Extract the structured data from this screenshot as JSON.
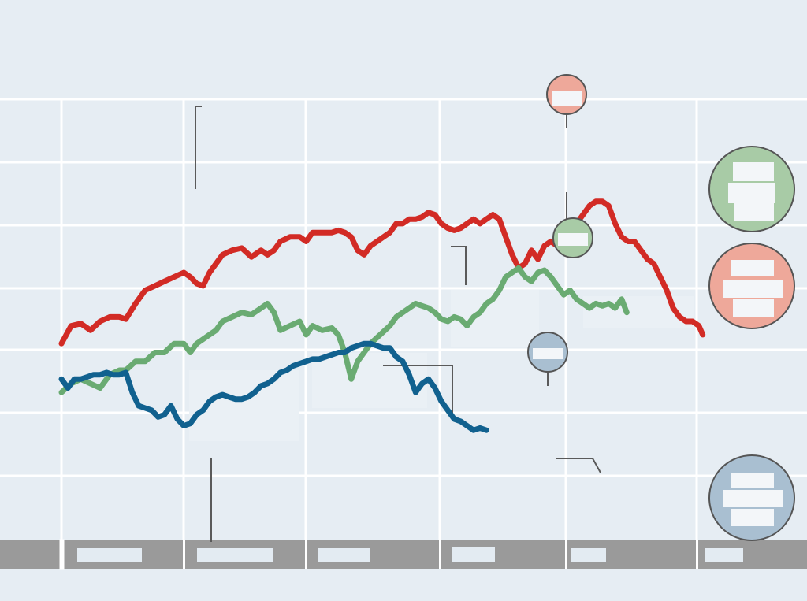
{
  "colors": {
    "background": "#e6edf3",
    "series_red": "#d22b25",
    "series_green": "#6aab72",
    "series_blue": "#11618f",
    "badge_red": "#eea89a",
    "badge_green": "#a8cba6",
    "badge_blue": "#a9bfd1",
    "year_band": "#9a9a9a"
  },
  "chart_data": {
    "type": "line",
    "title": "",
    "xlabel": "",
    "ylabel": "",
    "grid": true,
    "legend": "right",
    "x_range": [
      0,
      100
    ],
    "y_range": [
      0,
      100
    ],
    "series": [
      {
        "id": "red",
        "color": "#d22b25",
        "values": [
          [
            0,
            45
          ],
          [
            1.5,
            49
          ],
          [
            3,
            49.5
          ],
          [
            4.5,
            48
          ],
          [
            6,
            50
          ],
          [
            7.5,
            51
          ],
          [
            9,
            51
          ],
          [
            10,
            50.5
          ],
          [
            11.5,
            54
          ],
          [
            13,
            57
          ],
          [
            14.5,
            58
          ],
          [
            16,
            59
          ],
          [
            17.5,
            60
          ],
          [
            19,
            61
          ],
          [
            20,
            60
          ],
          [
            21,
            58.5
          ],
          [
            22,
            58
          ],
          [
            23,
            61
          ],
          [
            24,
            63
          ],
          [
            25,
            65
          ],
          [
            26.5,
            66
          ],
          [
            28,
            66.5
          ],
          [
            29.5,
            64.5
          ],
          [
            31,
            66
          ],
          [
            32,
            65
          ],
          [
            33,
            66
          ],
          [
            34,
            68
          ],
          [
            35.5,
            69
          ],
          [
            37,
            69
          ],
          [
            38,
            68
          ],
          [
            39,
            70
          ],
          [
            40.5,
            70
          ],
          [
            42,
            70
          ],
          [
            43,
            70.5
          ],
          [
            44,
            70
          ],
          [
            45,
            69
          ],
          [
            46,
            66
          ],
          [
            47,
            65
          ],
          [
            48,
            67
          ],
          [
            49.5,
            68.5
          ],
          [
            51,
            70
          ],
          [
            52,
            72
          ],
          [
            53,
            72
          ],
          [
            54,
            73
          ],
          [
            55,
            73
          ],
          [
            56,
            73.5
          ],
          [
            57,
            74.5
          ],
          [
            58,
            74
          ],
          [
            59,
            72
          ],
          [
            60,
            71
          ],
          [
            61,
            70.5
          ],
          [
            62,
            71
          ],
          [
            63,
            72
          ],
          [
            64,
            73
          ],
          [
            65,
            72
          ],
          [
            66,
            73
          ],
          [
            67,
            74
          ],
          [
            68,
            73
          ],
          [
            69,
            69
          ],
          [
            70,
            65
          ],
          [
            71,
            62
          ],
          [
            72,
            63
          ],
          [
            73,
            66
          ],
          [
            74,
            64
          ],
          [
            75,
            67
          ],
          [
            76,
            68
          ],
          [
            77,
            67
          ],
          [
            78,
            69
          ],
          [
            79,
            70
          ],
          [
            80,
            72
          ],
          [
            81,
            74
          ],
          [
            82,
            76
          ],
          [
            83,
            77
          ],
          [
            84,
            77
          ],
          [
            85,
            76
          ],
          [
            86,
            72
          ],
          [
            87,
            69
          ],
          [
            88,
            68
          ],
          [
            89,
            68
          ],
          [
            90,
            66
          ],
          [
            91,
            64
          ],
          [
            92,
            63
          ],
          [
            93,
            60
          ],
          [
            94,
            57
          ],
          [
            95,
            53
          ],
          [
            96,
            51
          ],
          [
            97,
            50
          ],
          [
            98,
            50
          ],
          [
            99,
            49
          ],
          [
            99.6,
            47
          ]
        ]
      },
      {
        "id": "green",
        "color": "#6aab72",
        "values": [
          [
            0,
            34
          ],
          [
            1.5,
            36
          ],
          [
            3,
            37
          ],
          [
            4.5,
            36
          ],
          [
            6,
            35
          ],
          [
            7.5,
            38
          ],
          [
            9,
            39
          ],
          [
            10,
            39
          ],
          [
            11.5,
            41
          ],
          [
            13,
            41
          ],
          [
            14.5,
            43
          ],
          [
            16,
            43
          ],
          [
            17.5,
            45
          ],
          [
            19,
            45
          ],
          [
            20,
            43
          ],
          [
            21,
            45
          ],
          [
            22,
            46
          ],
          [
            23,
            47
          ],
          [
            24,
            48
          ],
          [
            25,
            50
          ],
          [
            26.5,
            51
          ],
          [
            28,
            52
          ],
          [
            29.5,
            51.5
          ],
          [
            31,
            53
          ],
          [
            32,
            54
          ],
          [
            33,
            52
          ],
          [
            34,
            48
          ],
          [
            35.5,
            49
          ],
          [
            37,
            50
          ],
          [
            38,
            47
          ],
          [
            39,
            49
          ],
          [
            40.5,
            48
          ],
          [
            42,
            48.5
          ],
          [
            43,
            47
          ],
          [
            44,
            43
          ],
          [
            45,
            37
          ],
          [
            46,
            41
          ],
          [
            47,
            43
          ],
          [
            48,
            45
          ],
          [
            49.5,
            47
          ],
          [
            51,
            49
          ],
          [
            52,
            51
          ],
          [
            53,
            52
          ],
          [
            54,
            53
          ],
          [
            55,
            54
          ],
          [
            56,
            53.5
          ],
          [
            57,
            53
          ],
          [
            58,
            52
          ],
          [
            59,
            50.5
          ],
          [
            60,
            50
          ],
          [
            61,
            51
          ],
          [
            62,
            50.5
          ],
          [
            63,
            49
          ],
          [
            64,
            51
          ],
          [
            65,
            52
          ],
          [
            66,
            54
          ],
          [
            67,
            55
          ],
          [
            68,
            57
          ],
          [
            69,
            60
          ],
          [
            70,
            61
          ],
          [
            71,
            62
          ],
          [
            72,
            60
          ],
          [
            73,
            59
          ],
          [
            74,
            61
          ],
          [
            75,
            61.5
          ],
          [
            76,
            60
          ],
          [
            77,
            58
          ],
          [
            78,
            56
          ],
          [
            79,
            57
          ],
          [
            80,
            55
          ],
          [
            81,
            54
          ],
          [
            82,
            53
          ],
          [
            83,
            54
          ],
          [
            84,
            53.5
          ],
          [
            85,
            54
          ],
          [
            86,
            53
          ],
          [
            87,
            55
          ],
          [
            87.8,
            52
          ]
        ]
      },
      {
        "id": "blue",
        "color": "#11618f",
        "values": [
          [
            0,
            37
          ],
          [
            1,
            35
          ],
          [
            2,
            37
          ],
          [
            3,
            37
          ],
          [
            4,
            37.5
          ],
          [
            5,
            38
          ],
          [
            6,
            38
          ],
          [
            7,
            38.5
          ],
          [
            8,
            38
          ],
          [
            9,
            38
          ],
          [
            10,
            38.5
          ],
          [
            11,
            34
          ],
          [
            12,
            31
          ],
          [
            13,
            30.5
          ],
          [
            14,
            30
          ],
          [
            15,
            28.5
          ],
          [
            16,
            29
          ],
          [
            17,
            31
          ],
          [
            18,
            28
          ],
          [
            19,
            26.5
          ],
          [
            20,
            27
          ],
          [
            21,
            29
          ],
          [
            22,
            30
          ],
          [
            23,
            32
          ],
          [
            24,
            33
          ],
          [
            25,
            33.5
          ],
          [
            26,
            33
          ],
          [
            27,
            32.5
          ],
          [
            28,
            32.5
          ],
          [
            29,
            33
          ],
          [
            30,
            34
          ],
          [
            31,
            35.5
          ],
          [
            32,
            36
          ],
          [
            33,
            37
          ],
          [
            34,
            38.5
          ],
          [
            35,
            39
          ],
          [
            36,
            40
          ],
          [
            37,
            40.5
          ],
          [
            38,
            41
          ],
          [
            39,
            41.5
          ],
          [
            40,
            41.5
          ],
          [
            41,
            42
          ],
          [
            42,
            42.5
          ],
          [
            43,
            43
          ],
          [
            44,
            43
          ],
          [
            45,
            44
          ],
          [
            46,
            44.5
          ],
          [
            47,
            45
          ],
          [
            48,
            45
          ],
          [
            49,
            44.5
          ],
          [
            50,
            44
          ],
          [
            51,
            44
          ],
          [
            52,
            42
          ],
          [
            53,
            41
          ],
          [
            54,
            38
          ],
          [
            55,
            34
          ],
          [
            56,
            36
          ],
          [
            57,
            37
          ],
          [
            58,
            35
          ],
          [
            59,
            32
          ],
          [
            60,
            30
          ],
          [
            61,
            28
          ],
          [
            62,
            27.5
          ],
          [
            63,
            26.5
          ],
          [
            64,
            25.5
          ],
          [
            65,
            26
          ],
          [
            66,
            25.5
          ]
        ]
      }
    ],
    "year_labels": [
      "",
      "",
      "",
      "",
      "",
      ""
    ],
    "annotations": []
  },
  "badges": [
    {
      "id": "red-badge",
      "label": ""
    },
    {
      "id": "green-badge",
      "label": ""
    },
    {
      "id": "blue-badge",
      "label": ""
    }
  ]
}
